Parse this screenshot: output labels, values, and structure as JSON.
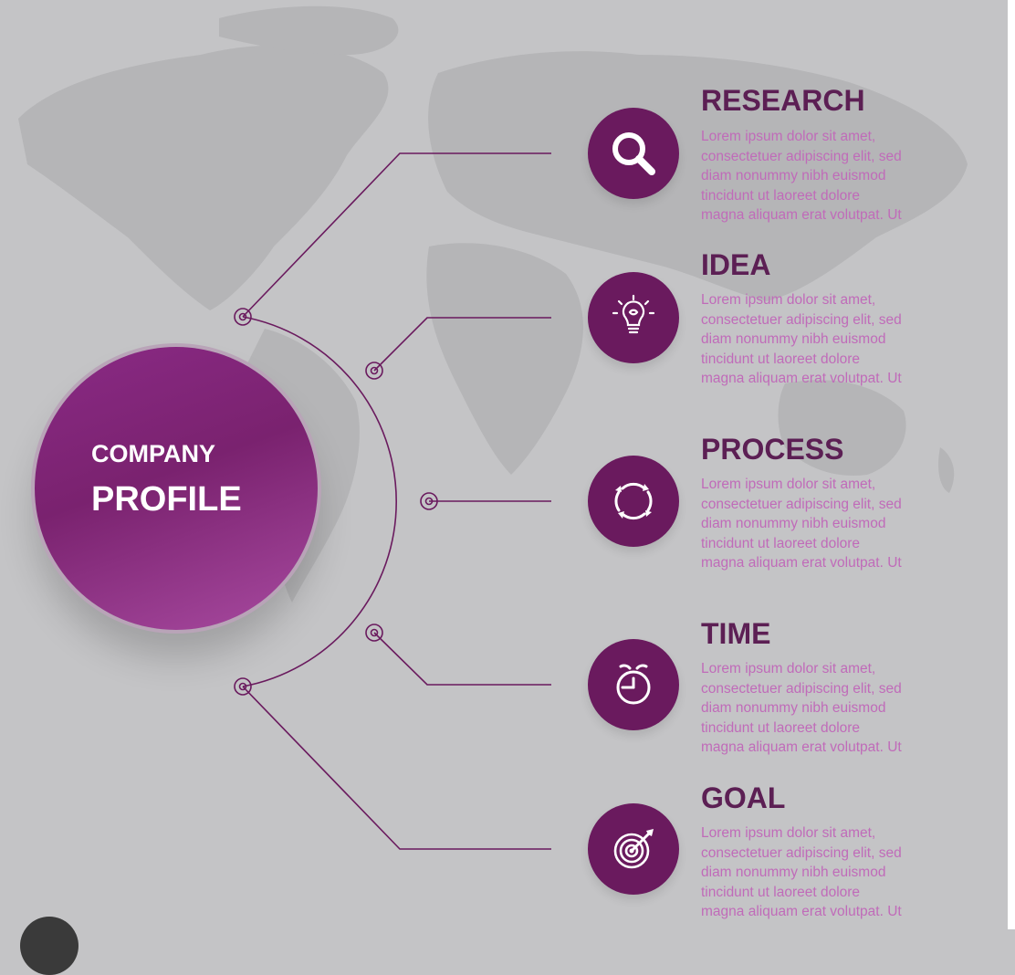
{
  "center": {
    "line1": "COMPANY",
    "line2": "PROFILE"
  },
  "colors": {
    "accent": "#6a1a5e",
    "title": "#5c1f54",
    "text": "#c06bb9",
    "background": "#c4c4c6"
  },
  "steps": [
    {
      "title": "RESEARCH",
      "icon": "search-icon",
      "lines": [
        "Lorem ipsum dolor sit amet,",
        "consectetuer adipiscing elit, sed",
        "diam nonummy nibh euismod",
        "tincidunt ut laoreet dolore",
        "magna aliquam erat volutpat. Ut"
      ]
    },
    {
      "title": "IDEA",
      "icon": "lightbulb-icon",
      "lines": [
        "Lorem ipsum dolor sit amet,",
        "consectetuer adipiscing elit, sed",
        "diam nonummy nibh euismod",
        "tincidunt ut laoreet dolore",
        "magna aliquam erat volutpat. Ut"
      ]
    },
    {
      "title": "PROCESS",
      "icon": "cycle-arrows-icon",
      "lines": [
        "Lorem ipsum dolor sit amet,",
        "consectetuer adipiscing elit, sed",
        "diam nonummy nibh euismod",
        "tincidunt ut laoreet dolore",
        "magna aliquam erat volutpat. Ut"
      ]
    },
    {
      "title": "TIME",
      "icon": "alarm-clock-icon",
      "lines": [
        "Lorem ipsum dolor sit amet,",
        "consectetuer adipiscing elit, sed",
        "diam nonummy nibh euismod",
        "tincidunt ut laoreet dolore",
        "magna aliquam erat volutpat. Ut"
      ]
    },
    {
      "title": "GOAL",
      "icon": "target-icon",
      "lines": [
        "Lorem ipsum dolor sit amet,",
        "consectetuer adipiscing elit, sed",
        "diam nonummy nibh euismod",
        "tincidunt ut laoreet dolore",
        "magna aliquam erat volutpat. Ut"
      ]
    }
  ]
}
